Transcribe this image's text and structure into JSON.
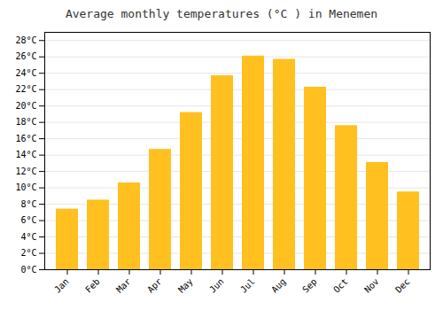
{
  "chart_data": {
    "type": "bar",
    "title": "Average monthly temperatures (°C ) in Menemen",
    "categories": [
      "Jan",
      "Feb",
      "Mar",
      "Apr",
      "May",
      "Jun",
      "Jul",
      "Aug",
      "Sep",
      "Oct",
      "Nov",
      "Dec"
    ],
    "values": [
      7.4,
      8.5,
      10.6,
      14.7,
      19.2,
      23.7,
      26.1,
      25.7,
      22.3,
      17.6,
      13.1,
      9.5
    ],
    "color": "#FFC020",
    "ylim": [
      0,
      29
    ],
    "yticks": [
      {
        "value": 0,
        "label": "0°C"
      },
      {
        "value": 2,
        "label": "2°C"
      },
      {
        "value": 4,
        "label": "4°C"
      },
      {
        "value": 6,
        "label": "6°C"
      },
      {
        "value": 8,
        "label": "8°C"
      },
      {
        "value": 10,
        "label": "10°C"
      },
      {
        "value": 12,
        "label": "12°C"
      },
      {
        "value": 14,
        "label": "14°C"
      },
      {
        "value": 16,
        "label": "16°C"
      },
      {
        "value": 18,
        "label": "18°C"
      },
      {
        "value": 20,
        "label": "20°C"
      },
      {
        "value": 22,
        "label": "22°C"
      },
      {
        "value": 24,
        "label": "24°C"
      },
      {
        "value": 26,
        "label": "26°C"
      },
      {
        "value": 28,
        "label": "28°C"
      }
    ],
    "grid": true
  }
}
